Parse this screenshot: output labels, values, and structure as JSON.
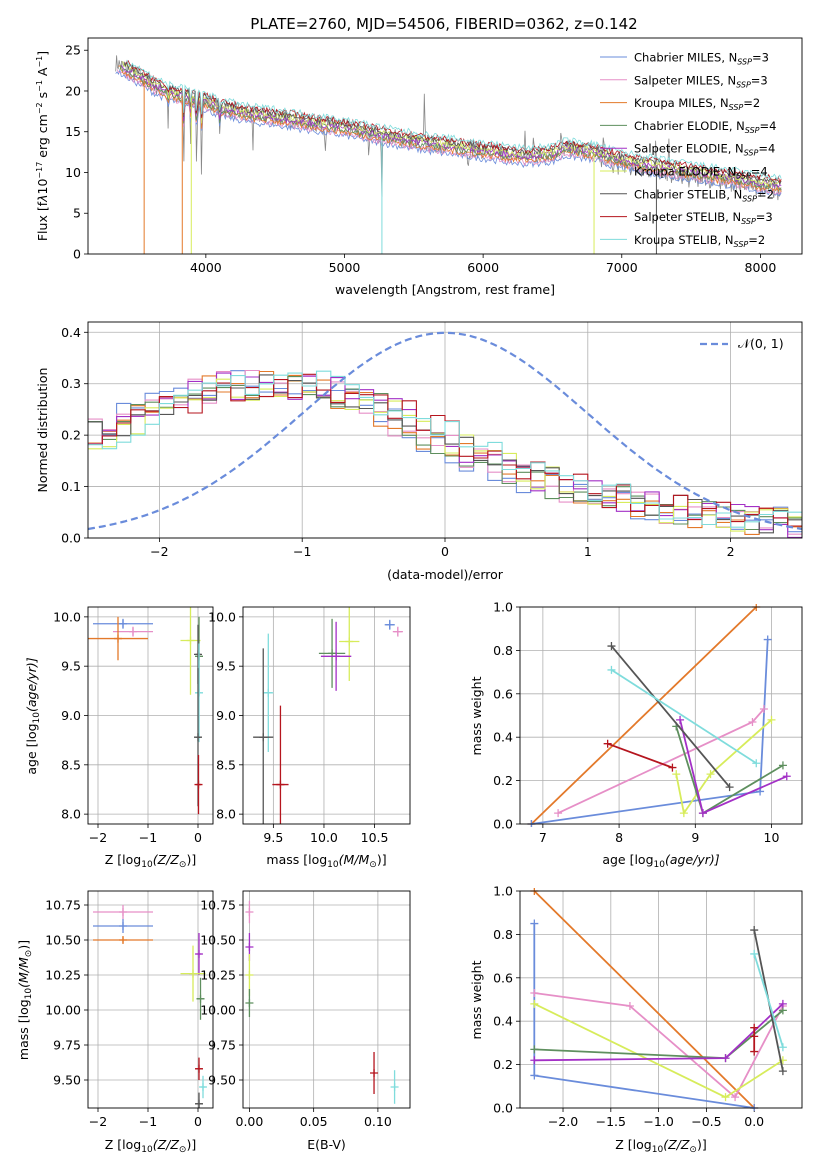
{
  "series_colors": {
    "chabrier_miles": "#6a8cdb",
    "salpeter_miles": "#e68fc7",
    "kroupa_miles": "#e3792a",
    "chabrier_elodie": "#5e8f5e",
    "salpeter_elodie": "#a330c6",
    "kroupa_elodie": "#d7ec5b",
    "chabrier_stelib": "#555555",
    "salpeter_stelib": "#b5151e",
    "kroupa_stelib": "#7fdcdc"
  },
  "chart_data": [
    {
      "type": "line",
      "title": "PLATE=2760, MJD=54506, FIBERID=0362, z=0.142",
      "xlabel": "wavelength [Angstrom, rest frame]",
      "ylabel": "Flux [f",
      "xlim": [
        3150,
        8300
      ],
      "ylim": [
        0,
        26.5
      ],
      "xticks": [
        "4000",
        "5000",
        "6000",
        "7000",
        "8000"
      ],
      "yticks": [
        "0",
        "5",
        "10",
        "15",
        "20",
        "25"
      ],
      "grid": false,
      "legend_position": "top-right",
      "continuum": {
        "x": [
          3350,
          3500,
          3650,
          3800,
          3950,
          4100,
          4300,
          4500,
          4800,
          5000,
          5300,
          5600,
          6000,
          6300,
          6500,
          6600,
          6800,
          7000,
          7300,
          7500,
          7800,
          8000,
          8150
        ],
        "y": [
          23.5,
          22.0,
          20.5,
          19.5,
          19.0,
          18.0,
          17.2,
          16.8,
          16.0,
          15.5,
          14.5,
          13.6,
          12.7,
          12.0,
          12.3,
          13.0,
          12.5,
          11.5,
          10.6,
          10.1,
          9.3,
          8.7,
          8.4
        ]
      },
      "series": [
        {
          "name": "Chabrier MILES, N",
          "n_ssp": "=3",
          "color_key": "chabrier_miles"
        },
        {
          "name": "Salpeter MILES, N",
          "n_ssp": "=3",
          "color_key": "salpeter_miles"
        },
        {
          "name": "Kroupa MILES, N",
          "n_ssp": "=2",
          "color_key": "kroupa_miles"
        },
        {
          "name": "Chabrier ELODIE, N",
          "n_ssp": "=4",
          "color_key": "chabrier_elodie"
        },
        {
          "name": "Salpeter ELODIE, N",
          "n_ssp": "=4",
          "color_key": "salpeter_elodie"
        },
        {
          "name": "Kroupa ELODIE, N",
          "n_ssp": "=4",
          "color_key": "kroupa_elodie"
        },
        {
          "name": "Chabrier STELIB, N",
          "n_ssp": "=2",
          "color_key": "chabrier_stelib"
        },
        {
          "name": "Salpeter STELIB, N",
          "n_ssp": "=3",
          "color_key": "salpeter_stelib"
        },
        {
          "name": "Kroupa STELIB, N",
          "n_ssp": "=2",
          "color_key": "kroupa_stelib"
        }
      ]
    },
    {
      "type": "line",
      "xlabel": "(data-model)/error",
      "ylabel": "Normed distribution",
      "xlim": [
        -2.5,
        2.5
      ],
      "ylim": [
        0,
        0.42
      ],
      "xticks": [
        "−2",
        "−1",
        "0",
        "1",
        "2"
      ],
      "yticks": [
        "0.0",
        "0.1",
        "0.2",
        "0.3",
        "0.4"
      ],
      "grid": true,
      "legend_position": "top-right",
      "normal_curve": {
        "label": "(0, 1)",
        "label_symbol": "𝒩",
        "mean": 0,
        "sigma": 1,
        "color": "#6a8cdb"
      },
      "histogram_bins": [
        -2.5,
        2.5
      ],
      "histogram_shape": {
        "x": [
          -2.4,
          -2.0,
          -1.6,
          -1.2,
          -0.8,
          -0.4,
          0.0,
          0.4,
          0.8,
          1.2,
          1.6,
          2.0,
          2.4
        ],
        "y": [
          0.2,
          0.26,
          0.29,
          0.3,
          0.29,
          0.25,
          0.19,
          0.14,
          0.1,
          0.075,
          0.055,
          0.04,
          0.03
        ]
      }
    },
    {
      "type": "scatter",
      "xlabel": "Z [log",
      "xlabel_sub": "10",
      "xlabel_tail": "(Z/Z",
      "ylabel": "age  [log",
      "ylabel_sub": "10",
      "ylabel_tail": "(age/yr)]",
      "xlim": [
        -2.2,
        0.3
      ],
      "ylim": [
        7.9,
        10.1
      ],
      "xticks": [
        "−2",
        "−1",
        "0"
      ],
      "yticks": [
        "8.0",
        "8.5",
        "9.0",
        "9.5",
        "10.0"
      ],
      "grid": true,
      "points": [
        {
          "color_key": "chabrier_miles",
          "x": -1.5,
          "y": 9.93,
          "xerr": 0.6,
          "yerr": 0.05
        },
        {
          "color_key": "salpeter_miles",
          "x": -1.3,
          "y": 9.85,
          "xerr": 0.4,
          "yerr": 0.05
        },
        {
          "color_key": "kroupa_miles",
          "x": -1.6,
          "y": 9.78,
          "xerr": 0.6,
          "yerr": 0.22
        },
        {
          "color_key": "kroupa_elodie",
          "x": -0.15,
          "y": 9.76,
          "xerr": 0.2,
          "yerr": 0.55
        },
        {
          "color_key": "chabrier_elodie",
          "x": 0.02,
          "y": 9.6,
          "xerr": 0.03,
          "yerr": 0.4
        },
        {
          "color_key": "chabrier_stelib",
          "x": 0.0,
          "y": 9.62,
          "xerr": 0.05,
          "yerr": 0.3
        },
        {
          "color_key": "kroupa_stelib",
          "x": 0.02,
          "y": 9.23,
          "xerr": 0.03,
          "yerr": 0.5
        },
        {
          "color_key": "chabrier_stelib",
          "x": 0.0,
          "y": 8.78,
          "xerr": 0.05,
          "yerr": 0.7
        },
        {
          "color_key": "salpeter_stelib",
          "x": 0.01,
          "y": 8.3,
          "xerr": 0.05,
          "yerr": 0.3
        }
      ]
    },
    {
      "type": "scatter",
      "xlabel": "mass [log",
      "xlabel_sub": "10",
      "xlabel_tail": "(M/M",
      "xlim": [
        9.2,
        10.85
      ],
      "ylim": [
        7.9,
        10.1
      ],
      "xticks": [
        "9.5",
        "10.0",
        "10.5"
      ],
      "yticks": [
        "8.0",
        "8.5",
        "9.0",
        "9.5",
        "10.0"
      ],
      "grid": true,
      "points": [
        {
          "color_key": "chabrier_miles",
          "x": 10.65,
          "y": 9.92,
          "xerr": 0.05,
          "yerr": 0.05
        },
        {
          "color_key": "salpeter_miles",
          "x": 10.73,
          "y": 9.85,
          "xerr": 0.05,
          "yerr": 0.05
        },
        {
          "color_key": "kroupa_elodie",
          "x": 10.25,
          "y": 9.75,
          "xerr": 0.1,
          "yerr": 0.4
        },
        {
          "color_key": "chabrier_elodie",
          "x": 10.08,
          "y": 9.63,
          "xerr": 0.13,
          "yerr": 0.35
        },
        {
          "color_key": "salpeter_elodie",
          "x": 10.12,
          "y": 9.6,
          "xerr": 0.15,
          "yerr": 0.35
        },
        {
          "color_key": "kroupa_stelib",
          "x": 9.45,
          "y": 9.23,
          "xerr": 0.05,
          "yerr": 0.6
        },
        {
          "color_key": "chabrier_stelib",
          "x": 9.4,
          "y": 8.78,
          "xerr": 0.1,
          "yerr": 0.9
        },
        {
          "color_key": "salpeter_stelib",
          "x": 9.57,
          "y": 8.3,
          "xerr": 0.08,
          "yerr": 0.8
        }
      ]
    },
    {
      "type": "line",
      "xlabel": "age  [log",
      "xlabel_sub": "10",
      "xlabel_tail": "(age/yr)]",
      "ylabel": "mass weight",
      "xlim": [
        6.7,
        10.4
      ],
      "ylim": [
        0,
        1.0
      ],
      "xticks": [
        "7",
        "8",
        "9",
        "10"
      ],
      "yticks": [
        "0.0",
        "0.2",
        "0.4",
        "0.6",
        "0.8",
        "1.0"
      ],
      "grid": true,
      "series": [
        {
          "color_key": "kroupa_miles",
          "x": [
            6.85,
            9.8
          ],
          "y": [
            0.0,
            1.0
          ]
        },
        {
          "color_key": "chabrier_miles",
          "x": [
            6.85,
            9.85,
            9.95
          ],
          "y": [
            0.0,
            0.15,
            0.85
          ]
        },
        {
          "color_key": "salpeter_miles",
          "x": [
            7.2,
            9.75,
            9.9
          ],
          "y": [
            0.05,
            0.47,
            0.53
          ]
        },
        {
          "color_key": "kroupa_elodie",
          "x": [
            8.75,
            8.85,
            9.2,
            10.0
          ],
          "y": [
            0.23,
            0.05,
            0.23,
            0.48
          ]
        },
        {
          "color_key": "chabrier_elodie",
          "x": [
            8.75,
            9.1,
            10.15
          ],
          "y": [
            0.45,
            0.05,
            0.27
          ]
        },
        {
          "color_key": "salpeter_elodie",
          "x": [
            8.8,
            9.1,
            10.2
          ],
          "y": [
            0.48,
            0.05,
            0.22
          ]
        },
        {
          "color_key": "chabrier_stelib",
          "x": [
            7.9,
            9.45
          ],
          "y": [
            0.82,
            0.17
          ]
        },
        {
          "color_key": "kroupa_stelib",
          "x": [
            7.9,
            9.8
          ],
          "y": [
            0.71,
            0.28
          ]
        },
        {
          "color_key": "salpeter_stelib",
          "x": [
            7.85,
            8.7
          ],
          "y": [
            0.37,
            0.26
          ]
        }
      ]
    },
    {
      "type": "scatter",
      "xlabel": "Z [log",
      "xlabel_sub": "10",
      "xlabel_tail": "(Z/Z",
      "ylabel": "mass [log",
      "ylabel_sub": "10",
      "ylabel_tail": "(M/M",
      "xlim": [
        -2.2,
        0.3
      ],
      "ylim": [
        9.3,
        10.85
      ],
      "xticks": [
        "−2",
        "−1",
        "0"
      ],
      "yticks": [
        "9.50",
        "9.75",
        "10.00",
        "10.25",
        "10.50",
        "10.75"
      ],
      "grid": true,
      "points": [
        {
          "color_key": "salpeter_miles",
          "x": -1.5,
          "y": 10.7,
          "xerr": 0.6,
          "yerr": 0.05
        },
        {
          "color_key": "chabrier_miles",
          "x": -1.5,
          "y": 10.6,
          "xerr": 0.6,
          "yerr": 0.05
        },
        {
          "color_key": "kroupa_miles",
          "x": -1.5,
          "y": 10.5,
          "xerr": 0.6,
          "yerr": 0.02
        },
        {
          "color_key": "salpeter_elodie",
          "x": 0.02,
          "y": 10.4,
          "xerr": 0.05,
          "yerr": 0.15
        },
        {
          "color_key": "kroupa_elodie",
          "x": -0.1,
          "y": 10.26,
          "xerr": 0.25,
          "yerr": 0.2
        },
        {
          "color_key": "chabrier_elodie",
          "x": 0.05,
          "y": 10.08,
          "xerr": 0.08,
          "yerr": 0.15
        },
        {
          "color_key": "salpeter_stelib",
          "x": 0.02,
          "y": 9.58,
          "xerr": 0.07,
          "yerr": 0.08
        },
        {
          "color_key": "kroupa_stelib",
          "x": 0.1,
          "y": 9.45,
          "xerr": 0.05,
          "yerr": 0.08
        },
        {
          "color_key": "chabrier_stelib",
          "x": 0.02,
          "y": 9.33,
          "xerr": 0.07,
          "yerr": 0.08
        }
      ]
    },
    {
      "type": "scatter",
      "xlabel": "E(B-V)",
      "xlim": [
        -0.005,
        0.125
      ],
      "ylim": [
        9.3,
        10.85
      ],
      "xticks": [
        "0.00",
        "0.05",
        "0.10"
      ],
      "yticks": [
        "9.50",
        "9.75",
        "10.00",
        "10.25",
        "10.50",
        "10.75"
      ],
      "grid": true,
      "points": [
        {
          "color_key": "salpeter_miles",
          "x": 0.0,
          "y": 10.7,
          "yerr": 0.08
        },
        {
          "color_key": "salpeter_elodie",
          "x": 0.0,
          "y": 10.45,
          "yerr": 0.1
        },
        {
          "color_key": "kroupa_elodie",
          "x": 0.0,
          "y": 10.25,
          "yerr": 0.15
        },
        {
          "color_key": "chabrier_elodie",
          "x": 0.0,
          "y": 10.05,
          "yerr": 0.1
        },
        {
          "color_key": "salpeter_stelib",
          "x": 0.097,
          "y": 9.55,
          "yerr": 0.15
        },
        {
          "color_key": "kroupa_stelib",
          "x": 0.113,
          "y": 9.45,
          "yerr": 0.12
        }
      ]
    },
    {
      "type": "line",
      "xlabel": "Z [log",
      "xlabel_sub": "10",
      "xlabel_tail": "(Z/Z",
      "ylabel": "mass weight",
      "xlim": [
        -2.45,
        0.5
      ],
      "ylim": [
        0,
        1.0
      ],
      "xticks": [
        "−2.0",
        "−1.5",
        "−1.0",
        "−0.5",
        "0.0"
      ],
      "yticks": [
        "0.0",
        "0.2",
        "0.4",
        "0.6",
        "0.8",
        "1.0"
      ],
      "grid": true,
      "series": [
        {
          "color_key": "kroupa_miles",
          "x": [
            -2.3,
            0.0
          ],
          "y": [
            1.0,
            0.0
          ]
        },
        {
          "color_key": "chabrier_miles",
          "x": [
            -2.3,
            -2.3,
            0.0
          ],
          "y": [
            0.85,
            0.15,
            0.0
          ]
        },
        {
          "color_key": "salpeter_miles",
          "x": [
            -2.3,
            -1.3,
            -0.2,
            0.3
          ],
          "y": [
            0.53,
            0.47,
            0.05,
            0.47
          ]
        },
        {
          "color_key": "kroupa_elodie",
          "x": [
            -2.3,
            -0.3,
            0.3
          ],
          "y": [
            0.48,
            0.05,
            0.22
          ]
        },
        {
          "color_key": "chabrier_elodie",
          "x": [
            -2.3,
            -0.3,
            0.3
          ],
          "y": [
            0.27,
            0.23,
            0.45
          ]
        },
        {
          "color_key": "salpeter_elodie",
          "x": [
            -2.3,
            -0.3,
            0.3
          ],
          "y": [
            0.22,
            0.23,
            0.48
          ]
        },
        {
          "color_key": "chabrier_stelib",
          "x": [
            0.0,
            0.3
          ],
          "y": [
            0.82,
            0.17
          ]
        },
        {
          "color_key": "kroupa_stelib",
          "x": [
            0.0,
            0.3
          ],
          "y": [
            0.71,
            0.28
          ]
        },
        {
          "color_key": "salpeter_stelib",
          "x": [
            0.0,
            0.0,
            0.0
          ],
          "y": [
            0.37,
            0.33,
            0.26
          ]
        }
      ]
    }
  ]
}
